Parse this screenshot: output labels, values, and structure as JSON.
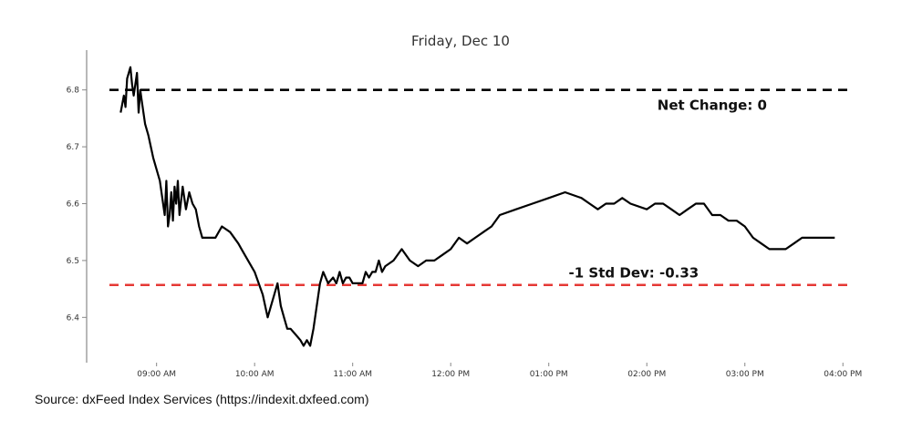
{
  "chart_data": {
    "type": "line",
    "title": "Friday, Dec 10",
    "xlabel": "",
    "ylabel": "",
    "ylim": [
      6.33,
      6.87
    ],
    "xlim": [
      "08:20 AM",
      "04:06 PM"
    ],
    "x_ticks": [
      "09:00 AM",
      "10:00 AM",
      "11:00 AM",
      "12:00 PM",
      "01:00 PM",
      "02:00 PM",
      "03:00 PM",
      "04:00 PM"
    ],
    "y_ticks": [
      6.4,
      6.5,
      6.6,
      6.7,
      6.8
    ],
    "grid": false,
    "line_color": "#000000",
    "series": [
      {
        "x": [
          "08:38 AM",
          "08:40 AM",
          "08:41 AM",
          "08:42 AM",
          "08:44 AM",
          "08:45 AM",
          "08:46 AM",
          "08:48 AM",
          "08:49 AM",
          "08:50 AM",
          "08:51 AM",
          "08:53 AM",
          "08:55 AM",
          "08:58 AM",
          "09:02 AM",
          "09:05 AM",
          "09:06 AM",
          "09:07 AM",
          "09:08 AM",
          "09:09 AM",
          "09:10 AM",
          "09:11 AM",
          "09:12 AM",
          "09:13 AM",
          "09:14 AM",
          "09:16 AM",
          "09:18 AM",
          "09:20 AM",
          "09:22 AM",
          "09:24 AM",
          "09:26 AM",
          "09:28 AM",
          "09:30 AM",
          "09:32 AM",
          "09:34 AM",
          "09:36 AM",
          "09:40 AM",
          "09:45 AM",
          "09:50 AM",
          "09:52 AM",
          "09:54 AM",
          "09:56 AM",
          "10:00 AM",
          "10:05 AM",
          "10:08 AM",
          "10:10 AM",
          "10:12 AM",
          "10:14 AM",
          "10:16 AM",
          "10:18 AM",
          "10:20 AM",
          "10:22 AM",
          "10:25 AM",
          "10:28 AM",
          "10:30 AM",
          "10:32 AM",
          "10:34 AM",
          "10:36 AM",
          "10:38 AM",
          "10:40 AM",
          "10:42 AM",
          "10:45 AM",
          "10:48 AM",
          "10:50 AM",
          "10:52 AM",
          "10:54 AM",
          "10:56 AM",
          "10:58 AM",
          "11:00 AM",
          "11:02 AM",
          "11:04 AM",
          "11:06 AM",
          "11:08 AM",
          "11:10 AM",
          "11:12 AM",
          "11:14 AM",
          "11:16 AM",
          "11:18 AM",
          "11:20 AM",
          "11:25 AM",
          "11:30 AM",
          "11:35 AM",
          "11:40 AM",
          "11:45 AM",
          "11:50 AM",
          "11:55 AM",
          "12:00 PM",
          "12:05 PM",
          "12:10 PM",
          "12:15 PM",
          "12:20 PM",
          "12:25 PM",
          "12:30 PM",
          "12:40 PM",
          "12:50 PM",
          "01:00 PM",
          "01:10 PM",
          "01:20 PM",
          "01:25 PM",
          "01:30 PM",
          "01:35 PM",
          "01:40 PM",
          "01:45 PM",
          "01:50 PM",
          "02:00 PM",
          "02:05 PM",
          "02:10 PM",
          "02:15 PM",
          "02:20 PM",
          "02:25 PM",
          "02:30 PM",
          "02:35 PM",
          "02:40 PM",
          "02:45 PM",
          "02:50 PM",
          "02:55 PM",
          "03:00 PM",
          "03:05 PM",
          "03:10 PM",
          "03:15 PM",
          "03:20 PM",
          "03:25 PM",
          "03:30 PM",
          "03:35 PM",
          "03:40 PM",
          "03:45 PM",
          "03:50 PM",
          "03:55 PM"
        ],
        "y": [
          6.76,
          6.79,
          6.77,
          6.82,
          6.84,
          6.81,
          6.79,
          6.83,
          6.76,
          6.8,
          6.78,
          6.74,
          6.72,
          6.68,
          6.64,
          6.58,
          6.64,
          6.56,
          6.58,
          6.62,
          6.57,
          6.63,
          6.6,
          6.64,
          6.58,
          6.63,
          6.59,
          6.62,
          6.6,
          6.59,
          6.56,
          6.54,
          6.54,
          6.54,
          6.54,
          6.54,
          6.56,
          6.55,
          6.53,
          6.52,
          6.51,
          6.5,
          6.48,
          6.44,
          6.4,
          6.42,
          6.44,
          6.46,
          6.42,
          6.4,
          6.38,
          6.38,
          6.37,
          6.36,
          6.35,
          6.36,
          6.35,
          6.38,
          6.42,
          6.46,
          6.48,
          6.46,
          6.47,
          6.46,
          6.48,
          6.46,
          6.47,
          6.47,
          6.46,
          6.46,
          6.46,
          6.46,
          6.48,
          6.47,
          6.48,
          6.48,
          6.5,
          6.48,
          6.49,
          6.5,
          6.52,
          6.5,
          6.49,
          6.5,
          6.5,
          6.51,
          6.52,
          6.54,
          6.53,
          6.54,
          6.55,
          6.56,
          6.58,
          6.59,
          6.6,
          6.61,
          6.62,
          6.61,
          6.6,
          6.59,
          6.6,
          6.6,
          6.61,
          6.6,
          6.59,
          6.6,
          6.6,
          6.59,
          6.58,
          6.59,
          6.6,
          6.6,
          6.58,
          6.58,
          6.57,
          6.57,
          6.56,
          6.54,
          6.53,
          6.52,
          6.52,
          6.52,
          6.53,
          6.54,
          6.54,
          6.54,
          6.54,
          6.54
        ]
      }
    ],
    "hlines": [
      {
        "y": 6.8,
        "color": "#000000",
        "label": "Net Change: 0",
        "label_at": "02:40 PM",
        "label_offset": "below"
      },
      {
        "y": 6.457,
        "color": "#e53935",
        "label": "-1 Std Dev: -0.33",
        "label_at": "01:52 PM",
        "label_offset": "above"
      }
    ]
  },
  "source": "Source: dxFeed Index Services (https://indexit.dxfeed.com)"
}
